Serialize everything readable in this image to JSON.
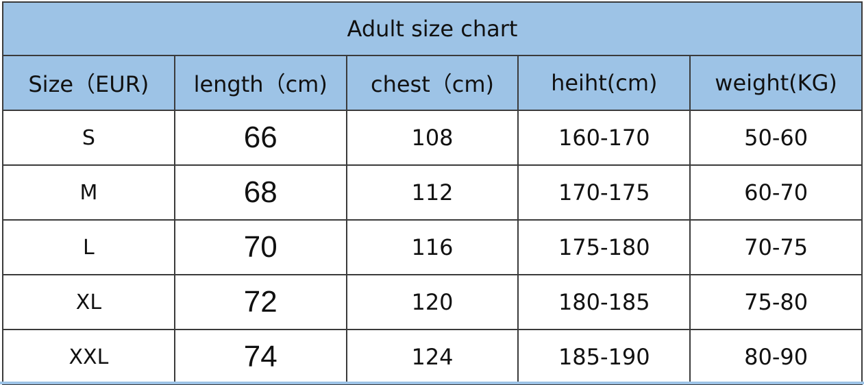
{
  "chart_data": {
    "type": "table",
    "title": "Adult size chart",
    "columns": [
      "Size（EUR)",
      "length（cm)",
      "chest（cm)",
      "heiht(cm)",
      "weight(KG)"
    ],
    "rows": [
      [
        "S",
        "66",
        "108",
        "160-170",
        "50-60"
      ],
      [
        "M",
        "68",
        "112",
        "170-175",
        "60-70"
      ],
      [
        "L",
        "70",
        "116",
        "175-180",
        "70-75"
      ],
      [
        "XL",
        "72",
        "120",
        "180-185",
        "75-80"
      ],
      [
        "XXL",
        "74",
        "124",
        "185-190",
        "80-90"
      ]
    ],
    "colors": {
      "header_background": "#9dc3e6",
      "border": "#3a3a3a"
    }
  }
}
